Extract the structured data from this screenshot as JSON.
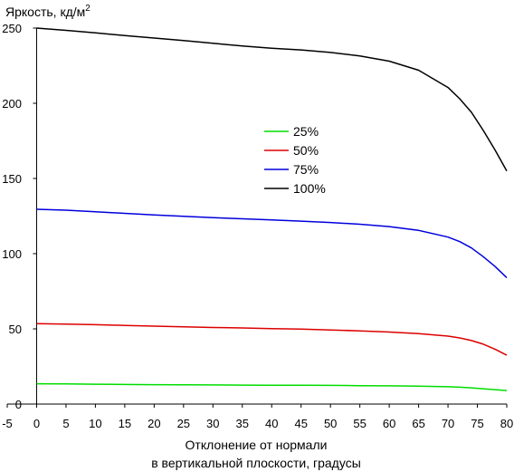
{
  "chart_data": {
    "type": "line",
    "title": "",
    "ylabel": "Яркость, кд/м",
    "ylabel_sup": "2",
    "xlabel_lines": [
      "Отклонение от нормали",
      "в вертикальной плоскости, градусы"
    ],
    "xlim": [
      -5,
      80
    ],
    "ylim": [
      0,
      250
    ],
    "xticks": [
      -5,
      0,
      5,
      10,
      15,
      20,
      25,
      30,
      35,
      40,
      45,
      50,
      55,
      60,
      65,
      70,
      75,
      80
    ],
    "yticks": [
      0,
      50,
      100,
      150,
      200,
      250
    ],
    "grid": false,
    "legend_position": "center",
    "x": [
      0,
      5,
      10,
      15,
      20,
      25,
      30,
      35,
      40,
      45,
      50,
      55,
      60,
      65,
      70,
      72,
      74,
      76,
      78,
      80
    ],
    "series": [
      {
        "name": "25%",
        "color": "#00dd00",
        "values": [
          13.5,
          13.4,
          13.2,
          13.0,
          12.9,
          12.8,
          12.7,
          12.6,
          12.5,
          12.5,
          12.4,
          12.2,
          12.1,
          11.9,
          11.5,
          11.2,
          10.8,
          10.2,
          9.6,
          9.0
        ]
      },
      {
        "name": "50%",
        "color": "#dd0000",
        "values": [
          53.5,
          53.2,
          52.8,
          52.3,
          51.8,
          51.3,
          50.9,
          50.6,
          50.2,
          49.8,
          49.3,
          48.7,
          47.9,
          46.8,
          45.2,
          44.0,
          42.2,
          39.8,
          36.5,
          32.5
        ]
      },
      {
        "name": "75%",
        "color": "#0000dd",
        "values": [
          129.5,
          128.9,
          127.9,
          126.8,
          125.8,
          124.9,
          124.0,
          123.2,
          122.4,
          121.6,
          120.7,
          119.6,
          118.0,
          115.5,
          111.0,
          108.0,
          103.8,
          98.0,
          91.5,
          84.0
        ]
      },
      {
        "name": "100%",
        "color": "#000000",
        "values": [
          250,
          248.5,
          246.8,
          245.0,
          243.4,
          241.7,
          239.9,
          238.1,
          236.6,
          235.5,
          233.8,
          231.5,
          228.0,
          222.0,
          210.5,
          203.0,
          194.0,
          182.0,
          169.0,
          155.0
        ]
      }
    ]
  }
}
